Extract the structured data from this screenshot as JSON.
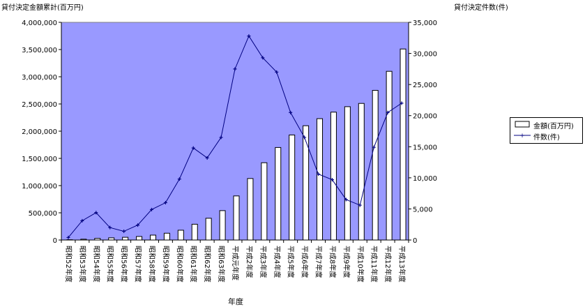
{
  "chart_data": {
    "type": "bar",
    "y_left_label": "貸付決定金額累計(百万円)",
    "y_right_label": "貸付決定件数(件)",
    "xlabel": "年度",
    "categories": [
      "昭和52年度",
      "昭和53年度",
      "昭和54年度",
      "昭和55年度",
      "昭和56年度",
      "昭和57年度",
      "昭和58年度",
      "昭和59年度",
      "昭和60年度",
      "昭和61年度",
      "昭和62年度",
      "昭和63年度",
      "平成元年度",
      "平成2年度",
      "平成3年度",
      "平成4年度",
      "平成5年度",
      "平成6年度",
      "平成7年度",
      "平成8年度",
      "平成9年度",
      "平成10年度",
      "平成11年度",
      "平成12年度",
      "平成13年度"
    ],
    "y_left_ticks": [
      "0",
      "500,000",
      "1,000,000",
      "1,500,000",
      "2,000,000",
      "2,500,000",
      "3,000,000",
      "3,500,000",
      "4,000,000"
    ],
    "y_right_ticks": [
      "0",
      "5,000",
      "10,000",
      "15,000",
      "20,000",
      "25,000",
      "30,000",
      "35,000"
    ],
    "ylim_left": [
      0,
      4000000
    ],
    "ylim_right": [
      0,
      35000
    ],
    "plot_background": "#9999ff",
    "series": [
      {
        "name": "金額(百万円)",
        "type": "bar",
        "axis": "left",
        "color": "#ffffff",
        "values": [
          5000,
          15000,
          30000,
          40000,
          50000,
          65000,
          90000,
          125000,
          180000,
          290000,
          400000,
          540000,
          810000,
          1130000,
          1420000,
          1700000,
          1930000,
          2100000,
          2230000,
          2350000,
          2450000,
          2510000,
          2750000,
          3100000,
          3510000
        ]
      },
      {
        "name": "件数(件)",
        "type": "line",
        "axis": "right",
        "color": "#000080",
        "values": [
          400,
          3100,
          4400,
          2000,
          1400,
          2400,
          4900,
          6000,
          9800,
          14800,
          13200,
          16500,
          27500,
          32800,
          29300,
          27000,
          20500,
          16500,
          10600,
          9700,
          6500,
          5600,
          14900,
          20500,
          22000
        ]
      }
    ]
  }
}
